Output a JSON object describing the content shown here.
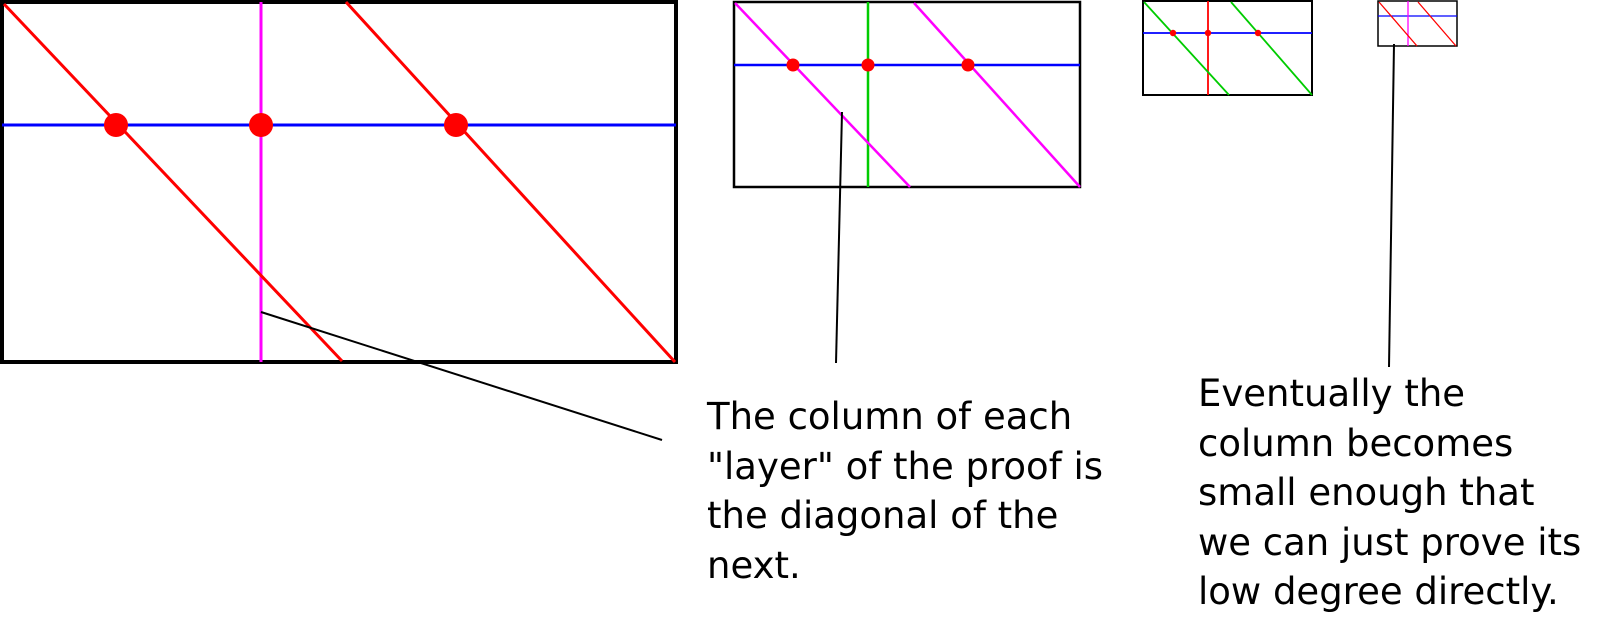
{
  "colors": {
    "frame": "#000000",
    "red": "#ff0000",
    "magenta": "#ff00ff",
    "blue": "#0000ff",
    "green": "#00cc00"
  },
  "captions": {
    "layer_column": {
      "lines": [
        "The column of each",
        "\"layer\" of the proof is",
        "the diagonal of the",
        "next."
      ]
    },
    "small_column": {
      "lines": [
        "Eventually the",
        "column becomes",
        "small enough that",
        "we can just prove its",
        "low degree directly."
      ]
    }
  }
}
